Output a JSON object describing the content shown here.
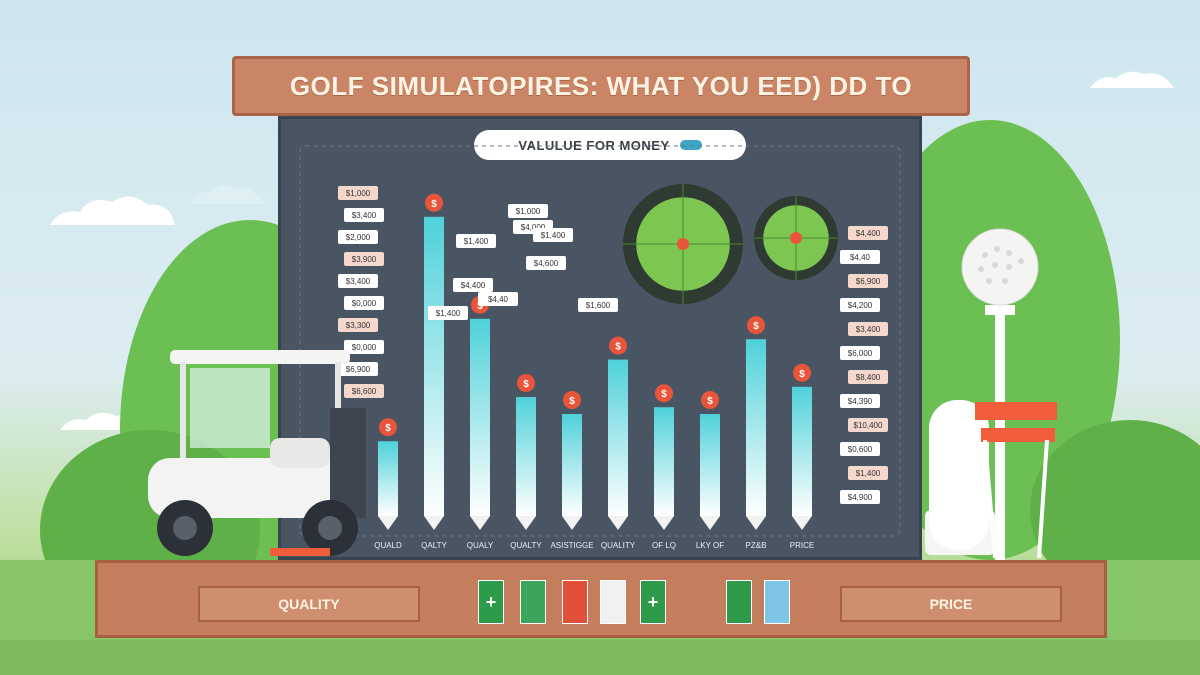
{
  "title": "GOLF SIMULATOPIRES: WHAT YOU EED) DD TO",
  "legend_pill": "VALULUE FOR MONEY",
  "base": {
    "left_label": "QUALITY",
    "right_label": "PRICE"
  },
  "chart_data": {
    "type": "bar",
    "categories": [
      "QUALD",
      "QALTY",
      "QUALY",
      "QUALTY",
      "ASISTIGGE",
      "QUALITY",
      "OF LQ",
      "LKY OF",
      "PZ&B",
      "PRICE"
    ],
    "values": [
      22,
      88,
      58,
      35,
      30,
      46,
      32,
      30,
      52,
      38
    ],
    "bar_color": "#4fd1d9",
    "ylim": [
      0,
      100
    ],
    "price_tags_left": [
      "$1,000",
      "$3,400",
      "$2,000",
      "$3,900",
      "$3,400",
      "$0,000",
      "$3,300",
      "$0,000",
      "$6,900",
      "$6,600"
    ],
    "price_tags_right": [
      "$4,400",
      "$4,40",
      "$6,900",
      "$4,200",
      "$3,400",
      "$6,000",
      "$8,400",
      "$4,390",
      "$10,400",
      "$0,600",
      "$1,400",
      "$4,900"
    ],
    "price_tags_mid": [
      "$1,000",
      "$4,000",
      "$1,400",
      "$1,400",
      "$4,600",
      "$4,400",
      "$4,40",
      "$1,400",
      "$1,600"
    ]
  },
  "colors": {
    "banner": "#c98566",
    "board": "#4a5563",
    "accent_coin": "#e8553a",
    "grass": "#88c468"
  },
  "icons": [
    "golf-cart-icon",
    "golf-ball-icon",
    "dollar-coin-icon",
    "target-icon",
    "shield-icon",
    "plus-icon"
  ]
}
